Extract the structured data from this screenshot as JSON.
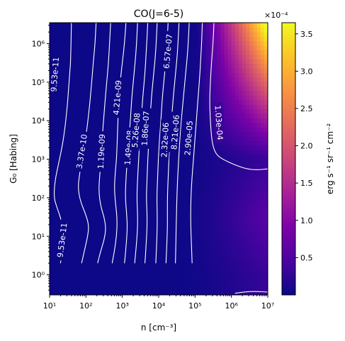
{
  "chart_data": {
    "type": "heatmap",
    "title": "CO(J=6-5)",
    "xlabel": "n [cm⁻³]",
    "ylabel": "G₀ [Habing]",
    "x_scale": "log",
    "y_scale": "log",
    "xlim": [
      10,
      10000000
    ],
    "ylim": [
      0.3,
      3500000
    ],
    "x_ticks": [
      {
        "value": 10,
        "label": "10¹"
      },
      {
        "value": 100,
        "label": "10²"
      },
      {
        "value": 1000,
        "label": "10³"
      },
      {
        "value": 10000,
        "label": "10⁴"
      },
      {
        "value": 100000,
        "label": "10⁵"
      },
      {
        "value": 1000000,
        "label": "10⁶"
      },
      {
        "value": 10000000,
        "label": "10⁷"
      }
    ],
    "y_ticks": [
      {
        "value": 1,
        "label": "10⁰"
      },
      {
        "value": 10,
        "label": "10¹"
      },
      {
        "value": 100,
        "label": "10²"
      },
      {
        "value": 1000,
        "label": "10³"
      },
      {
        "value": 10000,
        "label": "10⁴"
      },
      {
        "value": 100000,
        "label": "10⁵"
      },
      {
        "value": 1000000,
        "label": "10⁶"
      }
    ],
    "colorbar": {
      "label": "erg s⁻¹ sr⁻¹ cm⁻²",
      "offset_text": "×10⁻⁴",
      "colormap": "plasma",
      "range": [
        1e-08,
        0.000365
      ],
      "ticks": [
        {
          "value": 5e-05,
          "label": "0.5"
        },
        {
          "value": 0.0001,
          "label": "1.0"
        },
        {
          "value": 0.00015,
          "label": "1.5"
        },
        {
          "value": 0.0002,
          "label": "2.0"
        },
        {
          "value": 0.00025,
          "label": "2.5"
        },
        {
          "value": 0.0003,
          "label": "3.0"
        },
        {
          "value": 0.00035,
          "label": "3.5"
        }
      ]
    },
    "contours": [
      {
        "level": 9.53e-11,
        "label": "9.53e-11",
        "line": [
          [
            1.3,
            0.3
          ],
          [
            1.34,
            0.6
          ],
          [
            1.38,
            0.9
          ],
          [
            1.36,
            1.2
          ],
          [
            1.3,
            1.5
          ],
          [
            1.2,
            1.75
          ],
          [
            1.12,
            2.0
          ],
          [
            1.14,
            2.4
          ],
          [
            1.25,
            2.9
          ],
          [
            1.36,
            3.4
          ],
          [
            1.42,
            3.8
          ],
          [
            1.48,
            4.3
          ],
          [
            1.52,
            4.8
          ],
          [
            1.56,
            5.3
          ],
          [
            1.58,
            5.6
          ],
          [
            1.6,
            6.55
          ]
        ],
        "label_at": [
          [
            1.34,
            0.9
          ],
          [
            1.14,
            5.2
          ]
        ]
      },
      {
        "level": 3.37e-10,
        "label": "3.37e-10",
        "line": [
          [
            1.88,
            0.3
          ],
          [
            1.95,
            0.6
          ],
          [
            2.05,
            1.0
          ],
          [
            2.08,
            1.3
          ],
          [
            1.98,
            1.6
          ],
          [
            1.85,
            1.9
          ],
          [
            1.78,
            2.25
          ],
          [
            1.82,
            2.6
          ],
          [
            1.9,
            3.0
          ],
          [
            2.0,
            3.6
          ],
          [
            2.08,
            4.2
          ],
          [
            2.14,
            4.8
          ],
          [
            2.2,
            5.5
          ],
          [
            2.25,
            6.0
          ],
          [
            2.28,
            6.55
          ]
        ],
        "label_at": [
          [
            1.88,
            3.2
          ]
        ]
      },
      {
        "level": 1.19e-09,
        "label": "1.19e-09",
        "line": [
          [
            2.32,
            0.3
          ],
          [
            2.4,
            0.6
          ],
          [
            2.5,
            0.9
          ],
          [
            2.55,
            1.2
          ],
          [
            2.5,
            1.5
          ],
          [
            2.4,
            1.8
          ],
          [
            2.35,
            2.2
          ],
          [
            2.38,
            2.6
          ],
          [
            2.42,
            3.0
          ],
          [
            2.45,
            3.6
          ],
          [
            2.5,
            4.2
          ],
          [
            2.55,
            4.8
          ],
          [
            2.62,
            5.5
          ],
          [
            2.68,
            6.55
          ]
        ],
        "label_at": [
          [
            2.42,
            3.2
          ]
        ]
      },
      {
        "level": 4.21e-09,
        "label": "4.21e-09",
        "line": [
          [
            2.72,
            0.3
          ],
          [
            2.78,
            0.6
          ],
          [
            2.84,
            1.0
          ],
          [
            2.86,
            1.4
          ],
          [
            2.82,
            1.8
          ],
          [
            2.78,
            2.2
          ],
          [
            2.8,
            2.6
          ],
          [
            2.84,
            3.0
          ],
          [
            2.86,
            3.5
          ],
          [
            2.88,
            4.0
          ],
          [
            2.9,
            4.5
          ],
          [
            2.94,
            5.0
          ],
          [
            3.0,
            5.5
          ],
          [
            3.06,
            6.0
          ],
          [
            3.1,
            6.55
          ]
        ],
        "label_at": [
          [
            2.86,
            4.6
          ]
        ]
      },
      {
        "level": 1.49e-08,
        "label": "1.49e-08",
        "line": [
          [
            3.06,
            0.3
          ],
          [
            3.1,
            0.7
          ],
          [
            3.14,
            1.2
          ],
          [
            3.12,
            1.6
          ],
          [
            3.08,
            2.0
          ],
          [
            3.1,
            2.5
          ],
          [
            3.14,
            3.0
          ],
          [
            3.18,
            3.5
          ],
          [
            3.22,
            4.0
          ],
          [
            3.26,
            4.6
          ],
          [
            3.32,
            5.2
          ],
          [
            3.38,
            5.8
          ],
          [
            3.42,
            6.55
          ]
        ],
        "label_at": [
          [
            3.17,
            3.3
          ]
        ]
      },
      {
        "level": 5.26e-08,
        "label": "5.26e-08",
        "line": [
          [
            3.34,
            0.3
          ],
          [
            3.38,
            0.7
          ],
          [
            3.42,
            1.2
          ],
          [
            3.42,
            1.6
          ],
          [
            3.4,
            2.0
          ],
          [
            3.42,
            2.5
          ],
          [
            3.45,
            3.0
          ],
          [
            3.48,
            3.5
          ],
          [
            3.52,
            4.0
          ],
          [
            3.56,
            4.6
          ],
          [
            3.62,
            5.2
          ],
          [
            3.66,
            5.8
          ],
          [
            3.7,
            6.55
          ]
        ],
        "label_at": [
          [
            3.37,
            3.75
          ]
        ]
      },
      {
        "level": 1.86e-07,
        "label": "1.86e-07",
        "line": [
          [
            3.62,
            0.3
          ],
          [
            3.65,
            0.7
          ],
          [
            3.68,
            1.2
          ],
          [
            3.68,
            1.6
          ],
          [
            3.66,
            2.0
          ],
          [
            3.68,
            2.5
          ],
          [
            3.7,
            3.0
          ],
          [
            3.73,
            3.5
          ],
          [
            3.76,
            4.0
          ],
          [
            3.8,
            4.6
          ],
          [
            3.86,
            5.2
          ],
          [
            3.92,
            5.8
          ],
          [
            3.96,
            6.55
          ]
        ],
        "label_at": [
          [
            3.63,
            3.8
          ]
        ]
      },
      {
        "level": 6.57e-07,
        "label": "6.57e-07",
        "line": [
          [
            3.92,
            0.3
          ],
          [
            3.94,
            0.7
          ],
          [
            3.96,
            1.2
          ],
          [
            3.96,
            1.6
          ],
          [
            3.95,
            2.0
          ],
          [
            3.97,
            2.5
          ],
          [
            3.99,
            3.0
          ],
          [
            4.02,
            3.5
          ],
          [
            4.06,
            4.0
          ],
          [
            4.1,
            4.6
          ],
          [
            4.16,
            5.2
          ],
          [
            4.22,
            5.8
          ],
          [
            4.26,
            6.55
          ]
        ],
        "label_at": [
          [
            4.25,
            5.8
          ]
        ]
      },
      {
        "level": 2.32e-06,
        "label": "2.32e-06",
        "line": [
          [
            4.2,
            0.3
          ],
          [
            4.22,
            0.7
          ],
          [
            4.24,
            1.2
          ],
          [
            4.24,
            1.6
          ],
          [
            4.24,
            2.0
          ],
          [
            4.26,
            2.5
          ],
          [
            4.28,
            3.0
          ],
          [
            4.31,
            3.5
          ],
          [
            4.35,
            4.0
          ],
          [
            4.4,
            4.6
          ],
          [
            4.46,
            5.2
          ],
          [
            4.52,
            5.8
          ],
          [
            4.56,
            6.55
          ]
        ],
        "label_at": [
          [
            4.17,
            3.5
          ]
        ]
      },
      {
        "level": 8.21e-06,
        "label": "8.21e-06",
        "line": [
          [
            4.46,
            0.3
          ],
          [
            4.47,
            0.7
          ],
          [
            4.48,
            1.2
          ],
          [
            4.49,
            1.6
          ],
          [
            4.5,
            2.0
          ],
          [
            4.52,
            2.5
          ],
          [
            4.55,
            3.0
          ],
          [
            4.58,
            3.5
          ],
          [
            4.62,
            4.0
          ],
          [
            4.68,
            4.6
          ],
          [
            4.74,
            5.2
          ],
          [
            4.8,
            5.8
          ],
          [
            4.84,
            6.55
          ]
        ],
        "label_at": [
          [
            4.45,
            3.7
          ]
        ]
      },
      {
        "level": 2.9e-05,
        "label": "2.90e-05",
        "line": [
          [
            4.92,
            0.3
          ],
          [
            4.9,
            0.8
          ],
          [
            4.88,
            1.3
          ],
          [
            4.88,
            1.8
          ],
          [
            4.9,
            2.3
          ],
          [
            4.94,
            2.8
          ],
          [
            4.98,
            3.3
          ],
          [
            5.02,
            3.8
          ],
          [
            5.06,
            4.3
          ],
          [
            5.1,
            4.8
          ],
          [
            5.14,
            5.3
          ],
          [
            5.18,
            6.0
          ],
          [
            5.2,
            6.55
          ]
        ],
        "label_at": [
          [
            4.82,
            3.55
          ]
        ]
      },
      {
        "level": 0.000103,
        "label": "1.03e-04",
        "line": [
          [
            7.0,
            2.75
          ],
          [
            6.7,
            2.72
          ],
          [
            6.4,
            2.75
          ],
          [
            6.1,
            2.85
          ],
          [
            5.8,
            2.98
          ],
          [
            5.6,
            3.1
          ],
          [
            5.5,
            3.3
          ],
          [
            5.45,
            3.6
          ],
          [
            5.42,
            4.0
          ],
          [
            5.4,
            4.5
          ],
          [
            5.42,
            5.0
          ],
          [
            5.46,
            5.6
          ],
          [
            5.5,
            6.1
          ],
          [
            5.52,
            6.55
          ]
        ],
        "label_at": [
          [
            5.66,
            3.95
          ]
        ]
      },
      {
        "level": 1e-10,
        "label": "",
        "line": [
          [
            6.1,
            -0.48
          ],
          [
            6.4,
            -0.44
          ],
          [
            6.7,
            -0.43
          ],
          [
            7.0,
            -0.45
          ]
        ],
        "label_at": []
      }
    ]
  }
}
